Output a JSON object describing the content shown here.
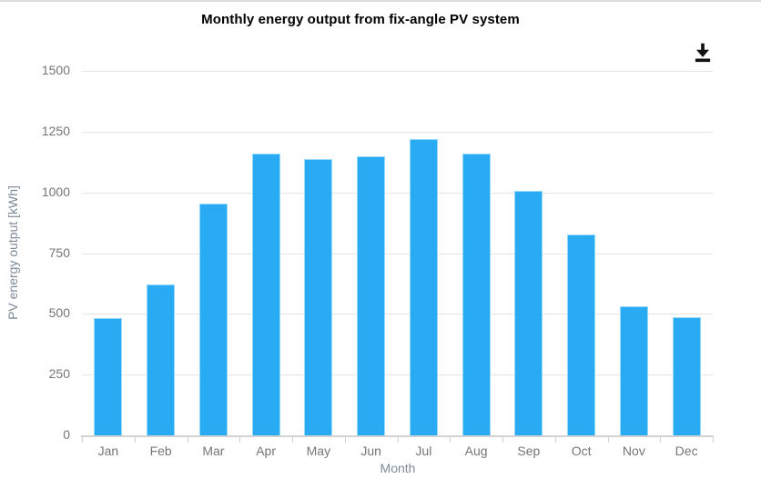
{
  "page": {
    "background": "#ffffff",
    "top_border_color": "#dcdcdc"
  },
  "header": {
    "download_icon": "download-icon",
    "download_icon_color": "#111111"
  },
  "chart_data": {
    "type": "bar",
    "title": "Monthly energy output from fix-angle PV system",
    "xlabel": "Month",
    "ylabel": "PV energy output [kWh]",
    "categories": [
      "Jan",
      "Feb",
      "Mar",
      "Apr",
      "May",
      "Jun",
      "Jul",
      "Aug",
      "Sep",
      "Oct",
      "Nov",
      "Dec"
    ],
    "values": [
      482,
      622,
      955,
      1160,
      1138,
      1150,
      1220,
      1160,
      1005,
      825,
      532,
      487
    ],
    "ylim": [
      0,
      1500
    ],
    "yticks": [
      0,
      250,
      500,
      750,
      1000,
      1250,
      1500
    ],
    "grid": true,
    "legend": "none",
    "bar_color": "#28abf2",
    "bar_border_color": "#95d9fa",
    "gridline_color": "#e5e5e5",
    "axis_line_color": "#d2d2d2",
    "tick_label_color": "#757575",
    "axis_title_color": "#7c8a99",
    "title_color": "#000000"
  }
}
